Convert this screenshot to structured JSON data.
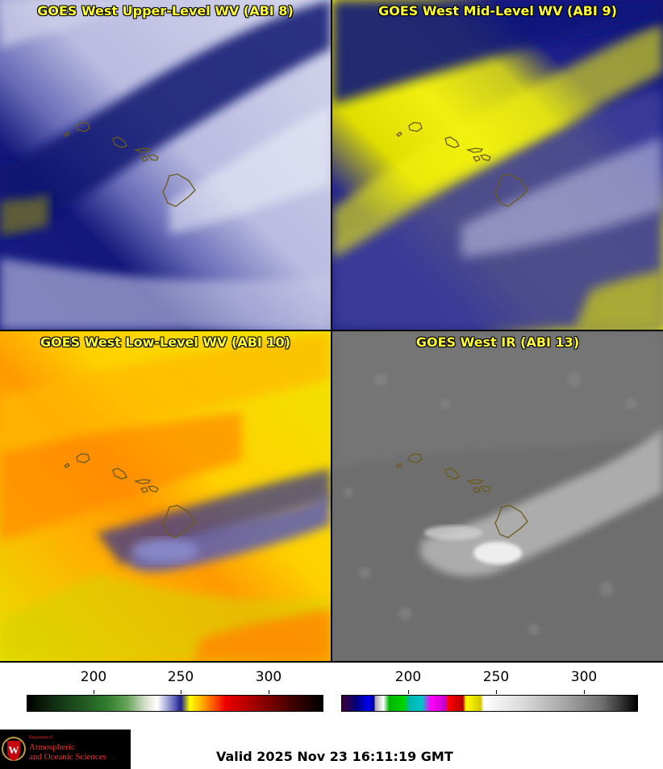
{
  "panels": [
    {
      "title": "GOES West Upper-Level WV (ABI 8)"
    },
    {
      "title": "GOES West Mid-Level WV (ABI 9)"
    },
    {
      "title": "GOES West Low-Level WV (ABI 10)"
    },
    {
      "title": "GOES West IR (ABI 13)"
    }
  ],
  "colorbars": [
    {
      "name": "water-vapor",
      "ticks": [
        "200",
        "250",
        "300"
      ]
    },
    {
      "name": "infrared",
      "ticks": [
        "200",
        "250",
        "300"
      ]
    }
  ],
  "logo": {
    "department": "Department of",
    "line1": "Atmospheric",
    "line2": "and Oceanic Sciences",
    "crest_letter": "W",
    "colors": {
      "background": "#000000",
      "text": "#e8352f",
      "crest": "#c5050c"
    }
  },
  "valid_time": "Valid 2025 Nov 23 16:11:19 GMT",
  "colors": {
    "title_text": "#ffff33",
    "island_outline": "#6b5a1a"
  }
}
